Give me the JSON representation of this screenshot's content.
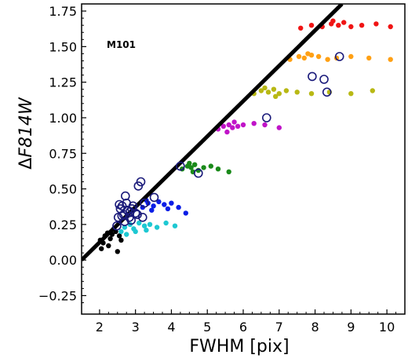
{
  "chart_data": {
    "type": "scatter",
    "title": "",
    "xlabel": "FWHM [pix]",
    "ylabel": "ΔF814W",
    "ylabel_parts": {
      "prefix": "Δ",
      "main": "F814W"
    },
    "annotation": "M101",
    "xlim": [
      1.5,
      10.5
    ],
    "ylim": [
      -0.38,
      1.8
    ],
    "xticks": [
      2,
      3,
      4,
      5,
      6,
      7,
      8,
      9,
      10
    ],
    "xtick_labels": [
      "2",
      "3",
      "4",
      "5",
      "6",
      "7",
      "8",
      "9",
      "10"
    ],
    "yticks": [
      -0.25,
      0.0,
      0.25,
      0.5,
      0.75,
      1.0,
      1.25,
      1.5,
      1.75
    ],
    "ytick_labels": [
      "−0.25",
      "0.00",
      "0.25",
      "0.50",
      "0.75",
      "1.00",
      "1.25",
      "1.50",
      "1.75"
    ],
    "grid": false,
    "fit_line": {
      "x": [
        1.5,
        8.75
      ],
      "y": [
        0.0,
        1.8
      ],
      "color": "#000000"
    },
    "clusters": [
      {
        "color": "#000000",
        "x": [
          2.02,
          2.15,
          2.22,
          2.35,
          2.3,
          2.45,
          2.1,
          2.55,
          2.4,
          2.25,
          2.6,
          2.05,
          2.5
        ],
        "y": [
          0.14,
          0.17,
          0.19,
          0.18,
          0.15,
          0.2,
          0.12,
          0.17,
          0.22,
          0.1,
          0.14,
          0.08,
          0.06
        ]
      },
      {
        "color": "#1ec8d2",
        "x": [
          2.6,
          2.7,
          2.85,
          2.95,
          3.1,
          3.25,
          3.4,
          3.6,
          3.85,
          4.1,
          2.75,
          3.0,
          3.3
        ],
        "y": [
          0.2,
          0.23,
          0.25,
          0.22,
          0.26,
          0.24,
          0.25,
          0.23,
          0.26,
          0.24,
          0.18,
          0.2,
          0.21
        ]
      },
      {
        "color": "#0a1ee6",
        "x": [
          3.2,
          3.35,
          3.5,
          3.65,
          3.8,
          4.0,
          4.2,
          3.45,
          3.3,
          3.9,
          4.4
        ],
        "y": [
          0.37,
          0.4,
          0.38,
          0.41,
          0.39,
          0.4,
          0.37,
          0.35,
          0.42,
          0.36,
          0.33
        ]
      },
      {
        "color": "#1a8a1a",
        "x": [
          4.3,
          4.45,
          4.55,
          4.65,
          4.75,
          4.9,
          5.1,
          4.5,
          4.6,
          5.3,
          5.6
        ],
        "y": [
          0.64,
          0.66,
          0.65,
          0.67,
          0.63,
          0.65,
          0.66,
          0.68,
          0.62,
          0.64,
          0.62
        ]
      },
      {
        "color": "#c014c8",
        "x": [
          5.3,
          5.45,
          5.6,
          5.7,
          5.85,
          6.0,
          6.3,
          6.6,
          7.0,
          5.55,
          5.75
        ],
        "y": [
          0.92,
          0.94,
          0.95,
          0.93,
          0.94,
          0.95,
          0.96,
          0.95,
          0.93,
          0.9,
          0.97
        ]
      },
      {
        "color": "#b8b814",
        "x": [
          6.3,
          6.5,
          6.7,
          6.85,
          7.0,
          7.2,
          7.5,
          7.9,
          8.4,
          9.0,
          9.6,
          6.6,
          6.9
        ],
        "y": [
          1.17,
          1.19,
          1.18,
          1.2,
          1.17,
          1.19,
          1.18,
          1.17,
          1.18,
          1.17,
          1.19,
          1.21,
          1.15
        ]
      },
      {
        "color": "#ffa014",
        "x": [
          7.3,
          7.55,
          7.7,
          7.9,
          8.1,
          8.35,
          8.6,
          9.0,
          9.5,
          10.1,
          7.8
        ],
        "y": [
          1.41,
          1.43,
          1.42,
          1.44,
          1.43,
          1.41,
          1.42,
          1.43,
          1.42,
          1.41,
          1.45
        ]
      },
      {
        "color": "#f01414",
        "x": [
          7.6,
          7.9,
          8.2,
          8.45,
          8.65,
          8.8,
          9.0,
          9.3,
          9.7,
          10.1,
          8.5
        ],
        "y": [
          1.63,
          1.65,
          1.64,
          1.66,
          1.65,
          1.67,
          1.64,
          1.65,
          1.66,
          1.64,
          1.68
        ]
      }
    ],
    "open_circles": {
      "color": "#1a1a7a",
      "x": [
        2.48,
        2.52,
        2.58,
        2.63,
        2.67,
        2.72,
        2.78,
        2.83,
        2.88,
        2.93,
        3.0,
        3.08,
        3.15,
        3.2,
        3.25,
        2.55,
        2.7,
        2.85,
        2.62,
        2.75,
        2.9,
        3.05,
        3.52,
        4.25,
        4.75,
        6.65,
        7.92,
        8.25,
        8.33,
        8.68
      ],
      "y": [
        0.24,
        0.3,
        0.36,
        0.38,
        0.32,
        0.45,
        0.35,
        0.3,
        0.28,
        0.38,
        0.33,
        0.52,
        0.55,
        0.3,
        0.4,
        0.39,
        0.27,
        0.34,
        0.31,
        0.4,
        0.36,
        0.32,
        0.44,
        0.66,
        0.61,
        1.0,
        1.29,
        1.27,
        1.18,
        1.43
      ]
    }
  }
}
